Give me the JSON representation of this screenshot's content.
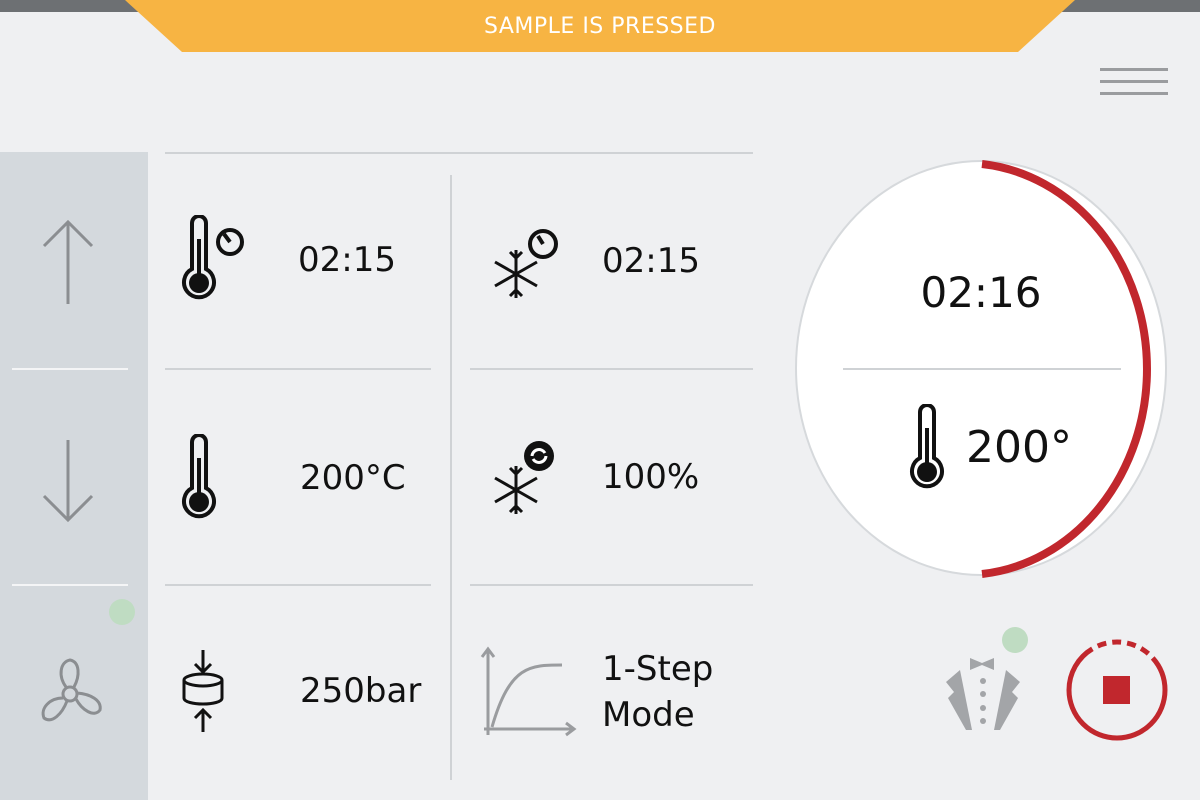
{
  "banner": {
    "text": "SAMPLE IS PRESSED"
  },
  "colors": {
    "accent": "#c1272d",
    "banner": "#f7b443",
    "status_dot": "#bfdcc2",
    "sidebar": "#d4d9dd"
  },
  "sidebar": {
    "items": [
      {
        "icon": "arrow-up-icon"
      },
      {
        "icon": "arrow-down-icon"
      },
      {
        "icon": "fan-icon",
        "status": "active"
      }
    ]
  },
  "grid": {
    "heating_time": "02:15",
    "cooling_time": "02:15",
    "temperature": "200°C",
    "cooling_rate": "100%",
    "pressure": "250bar",
    "mode_line1": "1-Step",
    "mode_line2": "Mode"
  },
  "dial": {
    "time": "02:16",
    "temperature": "200°",
    "progress": 0.5
  },
  "footer": {
    "operator_icon": "tuxedo-icon",
    "stop_icon": "stop-icon"
  }
}
